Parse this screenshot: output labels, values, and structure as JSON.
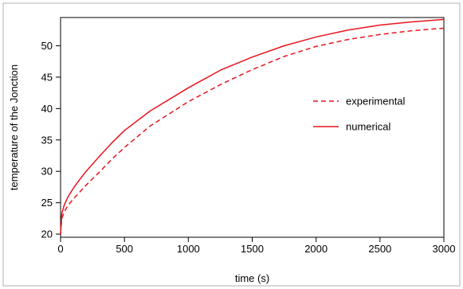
{
  "chart_data": {
    "type": "line",
    "title": "",
    "xlabel": "time (s)",
    "ylabel": "temperature of the Jonction",
    "xlim": [
      0,
      3000
    ],
    "ylim": [
      19.5,
      54.5
    ],
    "xticks": [
      0,
      500,
      1000,
      1500,
      2000,
      2500,
      3000
    ],
    "xtick_labels": [
      "0",
      "500",
      "1000",
      "1500",
      "2000",
      "2500",
      "3000"
    ],
    "yticks": [
      20,
      25,
      30,
      35,
      40,
      45,
      50
    ],
    "ytick_labels": [
      "20",
      "25",
      "30",
      "35",
      "40",
      "45",
      "50"
    ],
    "grid": false,
    "legend_position": "right",
    "series": [
      {
        "name": "experimental",
        "color": "#e8141e",
        "dash": "dashed",
        "x": [
          0,
          10,
          30,
          60,
          100,
          150,
          200,
          300,
          400,
          500,
          700,
          1000,
          1250,
          1500,
          1750,
          2000,
          2250,
          2500,
          2750,
          3000
        ],
        "y": [
          20.0,
          22.5,
          23.6,
          24.6,
          25.6,
          26.7,
          27.8,
          29.8,
          31.9,
          33.8,
          37.2,
          41.1,
          43.8,
          46.2,
          48.3,
          49.9,
          51.0,
          51.8,
          52.4,
          52.8
        ]
      },
      {
        "name": "numerical",
        "color": "#e8141e",
        "dash": "solid",
        "x": [
          0,
          10,
          30,
          60,
          100,
          150,
          200,
          300,
          400,
          500,
          700,
          1000,
          1250,
          1500,
          1750,
          2000,
          2250,
          2500,
          2750,
          3000
        ],
        "y": [
          20.0,
          23.3,
          24.7,
          26.0,
          27.3,
          28.7,
          30.0,
          32.3,
          34.5,
          36.5,
          39.6,
          43.3,
          46.1,
          48.2,
          50.0,
          51.4,
          52.5,
          53.3,
          53.8,
          54.2
        ]
      }
    ]
  }
}
